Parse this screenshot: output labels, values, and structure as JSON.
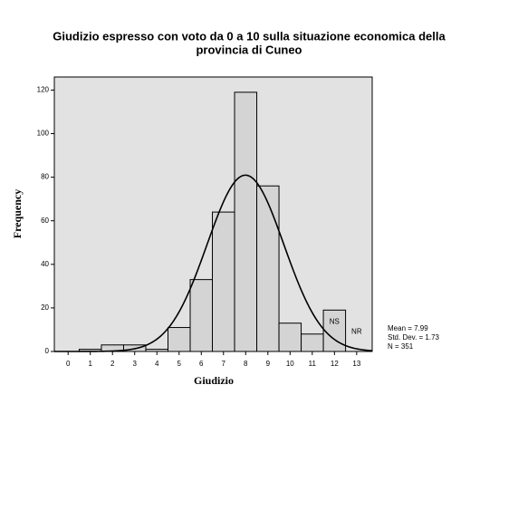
{
  "chart_data": {
    "type": "histogram",
    "title": [
      "Giudizio espresso con voto da 0 a 10 sulla situazione economica della",
      "provincia di Cuneo"
    ],
    "x_label": "Giudizio",
    "y_label": "Frequency",
    "bins": [
      -0.5,
      0.5,
      1.5,
      2.5,
      3.5,
      4.5,
      5.5,
      6.5,
      7.5,
      8.5,
      9.5,
      10.5,
      11.5,
      12.5,
      13.5
    ],
    "values": [
      0,
      1,
      3,
      3,
      1,
      11,
      33,
      64,
      119,
      76,
      13,
      8,
      19,
      0
    ],
    "color": "#d4d4d4",
    "background": "#e2e2e2",
    "xlim": [
      -0.62,
      13.7
    ],
    "xticks": [
      0,
      1,
      2,
      3,
      4,
      5,
      6,
      7,
      8,
      9,
      10,
      11,
      12,
      13
    ],
    "ylim": [
      0,
      126
    ],
    "yticks": [
      0,
      20,
      40,
      60,
      80,
      100,
      120
    ],
    "annotations": [
      {
        "text": "NS",
        "x": 12
      },
      {
        "text": "NR",
        "x": 13
      }
    ],
    "normal_curve": {
      "mean": {
        "value": 7.99,
        "label": "Mean = 7.99"
      },
      "sd": {
        "value": 1.73,
        "label": "Std. Dev. = 1.73"
      },
      "n": {
        "value": 351,
        "label": "N = 351"
      }
    }
  }
}
